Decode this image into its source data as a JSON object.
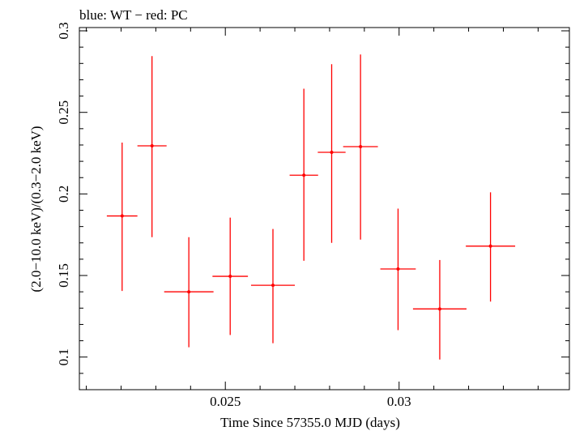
{
  "chart_data": {
    "type": "scatter",
    "title": "blue: WT − red: PC",
    "xlabel": "Time Since 57355.0 MJD (days)",
    "ylabel": "(2.0−10.0 keV)/(0.3−2.0 keV)",
    "xlim": [
      0.0208,
      0.0349
    ],
    "ylim": [
      0.08,
      0.302
    ],
    "x_ticks": [
      {
        "value": 0.025,
        "label": "0.025"
      },
      {
        "value": 0.03,
        "label": "0.03"
      }
    ],
    "y_ticks": [
      {
        "value": 0.1,
        "label": "0.1"
      },
      {
        "value": 0.15,
        "label": "0.15"
      },
      {
        "value": 0.2,
        "label": "0.2"
      },
      {
        "value": 0.25,
        "label": "0.25"
      },
      {
        "value": 0.3,
        "label": "0.3"
      }
    ],
    "grid": false,
    "series": [
      {
        "color": "#ff0000",
        "points": [
          {
            "x": 0.02203,
            "xerr": 0.00044,
            "y": 0.1865,
            "ylo": 0.1405,
            "yhi": 0.2315
          },
          {
            "x": 0.02289,
            "xerr": 0.00042,
            "y": 0.2295,
            "ylo": 0.1735,
            "yhi": 0.2845
          },
          {
            "x": 0.02395,
            "xerr": 0.00071,
            "y": 0.14,
            "ylo": 0.106,
            "yhi": 0.1735
          },
          {
            "x": 0.02514,
            "xerr": 0.00051,
            "y": 0.1495,
            "ylo": 0.1135,
            "yhi": 0.1855
          },
          {
            "x": 0.02637,
            "xerr": 0.00063,
            "y": 0.144,
            "ylo": 0.1085,
            "yhi": 0.1785
          },
          {
            "x": 0.02726,
            "xerr": 0.00041,
            "y": 0.2115,
            "ylo": 0.159,
            "yhi": 0.2645
          },
          {
            "x": 0.02806,
            "xerr": 0.0004,
            "y": 0.2255,
            "ylo": 0.17,
            "yhi": 0.2795
          },
          {
            "x": 0.02889,
            "xerr": 0.0005,
            "y": 0.229,
            "ylo": 0.172,
            "yhi": 0.2855
          },
          {
            "x": 0.02997,
            "xerr": 0.00051,
            "y": 0.154,
            "ylo": 0.1165,
            "yhi": 0.191
          },
          {
            "x": 0.03117,
            "xerr": 0.00077,
            "y": 0.1295,
            "ylo": 0.0985,
            "yhi": 0.1595
          },
          {
            "x": 0.03263,
            "xerr": 0.00071,
            "y": 0.168,
            "ylo": 0.134,
            "yhi": 0.201
          }
        ]
      }
    ]
  }
}
